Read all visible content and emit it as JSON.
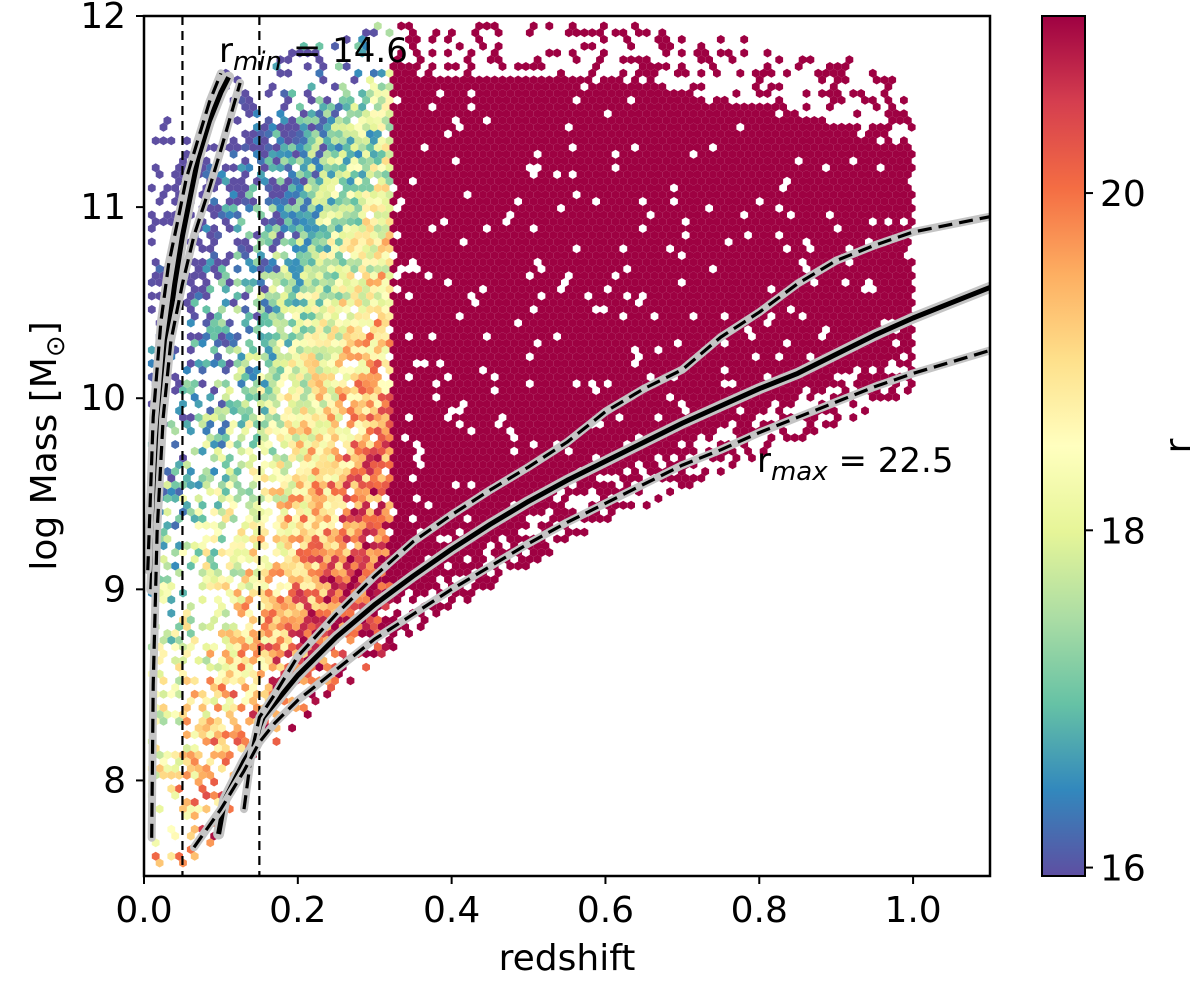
{
  "chart_data": {
    "type": "heatmap",
    "subtype": "hexbin-scatter",
    "xlabel": "redshift",
    "ylabel": {
      "main": "log Mass [M",
      "sub": "⊙",
      "close": "]"
    },
    "xlim": [
      0.0,
      1.1
    ],
    "ylim": [
      7.5,
      12.0
    ],
    "x_ticks": [
      0.0,
      0.2,
      0.4,
      0.6,
      0.8,
      1.0
    ],
    "x_tick_labels": [
      "0.0",
      "0.2",
      "0.4",
      "0.6",
      "0.8",
      "1.0"
    ],
    "y_ticks": [
      8,
      9,
      10,
      11,
      12
    ],
    "y_tick_labels": [
      "8",
      "9",
      "10",
      "11",
      "12"
    ],
    "colorbar": {
      "label": "r",
      "range": [
        15.95,
        21.05
      ],
      "ticks": [
        16,
        18,
        20
      ],
      "tick_labels": [
        "16",
        "18",
        "20"
      ],
      "colormap": [
        "#5e4fa2",
        "#3288bd",
        "#66c2a5",
        "#abdda4",
        "#e6f598",
        "#ffffbf",
        "#fee08b",
        "#fdae61",
        "#f46d43",
        "#d53e4f",
        "#9e0142"
      ]
    },
    "vertical_lines": [
      {
        "x": 0.05,
        "style": "dashed"
      },
      {
        "x": 0.15,
        "style": "dashed"
      }
    ],
    "annotations": [
      {
        "base": "r",
        "sub": "min",
        "text": " = 14.6",
        "x": 0.1,
        "y": 11.8
      },
      {
        "base": "r",
        "sub": "max",
        "text": " = 22.5",
        "x": 0.8,
        "y": 9.57
      }
    ],
    "curves": [
      {
        "name": "r_min limit (median)",
        "style": "solid",
        "points": [
          [
            0.01,
            9.0
          ],
          [
            0.02,
            9.8
          ],
          [
            0.03,
            10.3
          ],
          [
            0.04,
            10.6
          ],
          [
            0.05,
            10.85
          ],
          [
            0.06,
            11.05
          ],
          [
            0.07,
            11.25
          ],
          [
            0.085,
            11.45
          ],
          [
            0.1,
            11.6
          ],
          [
            0.11,
            11.68
          ]
        ]
      },
      {
        "name": "r_min limit (upper)",
        "style": "dashed",
        "points": [
          [
            0.005,
            9.1
          ],
          [
            0.012,
            9.9
          ],
          [
            0.022,
            10.4
          ],
          [
            0.032,
            10.7
          ],
          [
            0.045,
            10.95
          ],
          [
            0.055,
            11.15
          ],
          [
            0.07,
            11.35
          ],
          [
            0.085,
            11.55
          ],
          [
            0.1,
            11.7
          ]
        ]
      },
      {
        "name": "r_min limit (lower)",
        "style": "dashed",
        "points": [
          [
            0.01,
            7.7
          ],
          [
            0.012,
            8.5
          ],
          [
            0.017,
            9.3
          ],
          [
            0.025,
            9.9
          ],
          [
            0.035,
            10.3
          ],
          [
            0.05,
            10.6
          ],
          [
            0.065,
            10.85
          ],
          [
            0.085,
            11.1
          ],
          [
            0.1,
            11.3
          ],
          [
            0.125,
            11.65
          ]
        ]
      },
      {
        "name": "r_max limit (median)",
        "style": "solid",
        "points": [
          [
            0.097,
            7.72
          ],
          [
            0.105,
            7.9
          ],
          [
            0.13,
            8.1
          ],
          [
            0.145,
            8.2
          ],
          [
            0.15,
            8.28
          ],
          [
            0.155,
            8.33
          ],
          [
            0.2,
            8.55
          ],
          [
            0.25,
            8.75
          ],
          [
            0.3,
            8.92
          ],
          [
            0.35,
            9.07
          ],
          [
            0.4,
            9.21
          ],
          [
            0.45,
            9.34
          ],
          [
            0.5,
            9.46
          ],
          [
            0.55,
            9.57
          ],
          [
            0.6,
            9.67
          ],
          [
            0.65,
            9.77
          ],
          [
            0.7,
            9.87
          ],
          [
            0.75,
            9.96
          ],
          [
            0.8,
            10.05
          ],
          [
            0.85,
            10.13
          ],
          [
            0.9,
            10.23
          ],
          [
            0.95,
            10.33
          ],
          [
            1.0,
            10.42
          ],
          [
            1.05,
            10.5
          ],
          [
            1.1,
            10.58
          ]
        ]
      },
      {
        "name": "r_max limit (upper)",
        "style": "dashed",
        "points": [
          [
            0.13,
            7.85
          ],
          [
            0.14,
            8.15
          ],
          [
            0.15,
            8.33
          ],
          [
            0.17,
            8.45
          ],
          [
            0.2,
            8.65
          ],
          [
            0.25,
            8.87
          ],
          [
            0.3,
            9.07
          ],
          [
            0.35,
            9.25
          ],
          [
            0.4,
            9.39
          ],
          [
            0.45,
            9.52
          ],
          [
            0.5,
            9.64
          ],
          [
            0.55,
            9.77
          ],
          [
            0.6,
            9.93
          ],
          [
            0.65,
            10.05
          ],
          [
            0.7,
            10.15
          ],
          [
            0.75,
            10.32
          ],
          [
            0.8,
            10.45
          ],
          [
            0.85,
            10.6
          ],
          [
            0.9,
            10.72
          ],
          [
            0.95,
            10.8
          ],
          [
            1.0,
            10.87
          ],
          [
            1.05,
            10.91
          ],
          [
            1.1,
            10.95
          ]
        ]
      },
      {
        "name": "r_max limit (lower)",
        "style": "dashed",
        "points": [
          [
            0.065,
            7.65
          ],
          [
            0.1,
            7.85
          ],
          [
            0.13,
            8.05
          ],
          [
            0.15,
            8.2
          ],
          [
            0.17,
            8.3
          ],
          [
            0.2,
            8.42
          ],
          [
            0.25,
            8.58
          ],
          [
            0.3,
            8.74
          ],
          [
            0.35,
            8.87
          ],
          [
            0.4,
            9.0
          ],
          [
            0.45,
            9.12
          ],
          [
            0.5,
            9.24
          ],
          [
            0.55,
            9.35
          ],
          [
            0.6,
            9.45
          ],
          [
            0.65,
            9.55
          ],
          [
            0.7,
            9.65
          ],
          [
            0.75,
            9.73
          ],
          [
            0.8,
            9.82
          ],
          [
            0.85,
            9.9
          ],
          [
            0.9,
            9.98
          ],
          [
            0.95,
            10.06
          ],
          [
            1.0,
            10.13
          ],
          [
            1.05,
            10.19
          ],
          [
            1.1,
            10.25
          ]
        ]
      }
    ]
  }
}
